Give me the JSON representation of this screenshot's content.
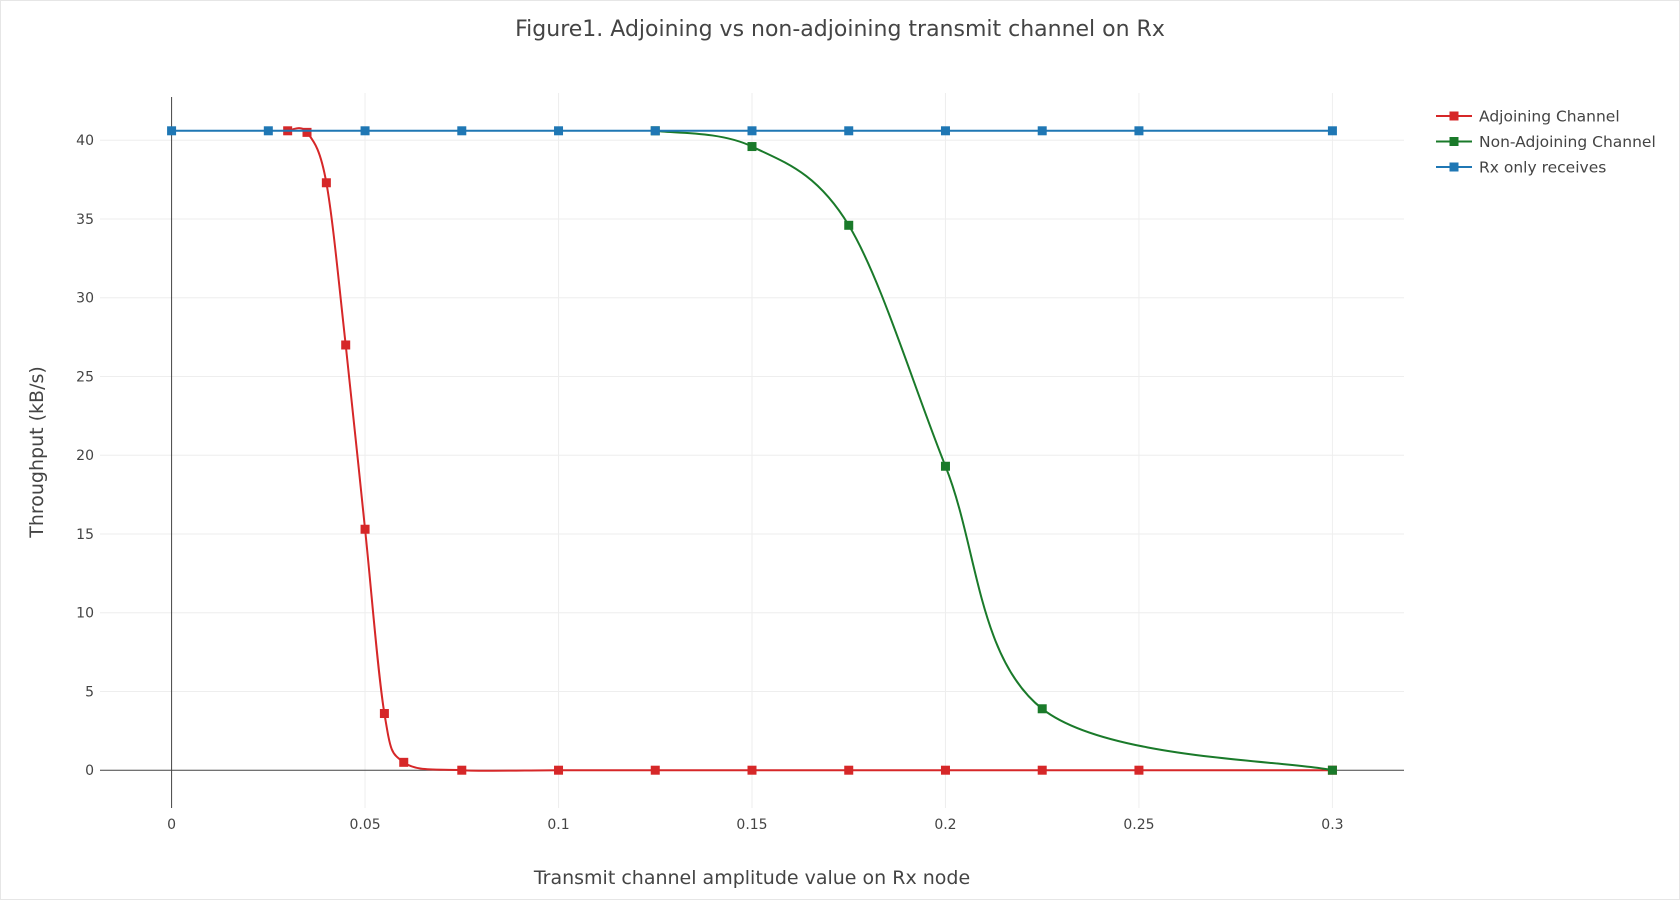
{
  "chart_data": {
    "type": "line",
    "title": "Figure1. Adjoining vs non-adjoining transmit channel on Rx",
    "xlabel": "Transmit channel amplitude value on Rx node",
    "ylabel": "Throughput (kB/s)",
    "xlim": [
      -0.0185,
      0.3185
    ],
    "ylim": [
      -2.4,
      43.0
    ],
    "x_ticks": [
      0,
      0.05,
      0.1,
      0.15,
      0.2,
      0.25,
      0.3
    ],
    "x_tick_labels": [
      "0",
      "0.05",
      "0.1",
      "0.15",
      "0.2",
      "0.25",
      "0.3"
    ],
    "y_ticks": [
      0,
      5,
      10,
      15,
      20,
      25,
      30,
      35,
      40
    ],
    "y_tick_labels": [
      "0",
      "5",
      "10",
      "15",
      "20",
      "25",
      "30",
      "35",
      "40"
    ],
    "grid": true,
    "legend_position": "top-right",
    "series": [
      {
        "name": "Adjoining Channel",
        "color": "#d62728",
        "x": [
          0.03,
          0.035,
          0.04,
          0.045,
          0.05,
          0.055,
          0.06,
          0.075,
          0.1,
          0.125,
          0.15,
          0.175,
          0.2,
          0.225,
          0.25,
          0.3
        ],
        "y": [
          40.6,
          40.5,
          37.3,
          27.0,
          15.3,
          3.6,
          0.5,
          0.0,
          0.0,
          0.0,
          0.0,
          0.0,
          0.0,
          0.0,
          0.0,
          0.0
        ]
      },
      {
        "name": "Non-Adjoining Channel",
        "color": "#1a7a2a",
        "x": [
          0.125,
          0.15,
          0.175,
          0.2,
          0.225,
          0.3
        ],
        "y": [
          40.6,
          39.6,
          34.6,
          19.3,
          3.9,
          0.0
        ]
      },
      {
        "name": "Rx only receives",
        "color": "#1f77b4",
        "x": [
          0,
          0.025,
          0.05,
          0.075,
          0.1,
          0.125,
          0.15,
          0.175,
          0.2,
          0.225,
          0.25,
          0.3
        ],
        "y": [
          40.6,
          40.6,
          40.6,
          40.6,
          40.6,
          40.6,
          40.6,
          40.6,
          40.6,
          40.6,
          40.6,
          40.6
        ]
      }
    ]
  }
}
